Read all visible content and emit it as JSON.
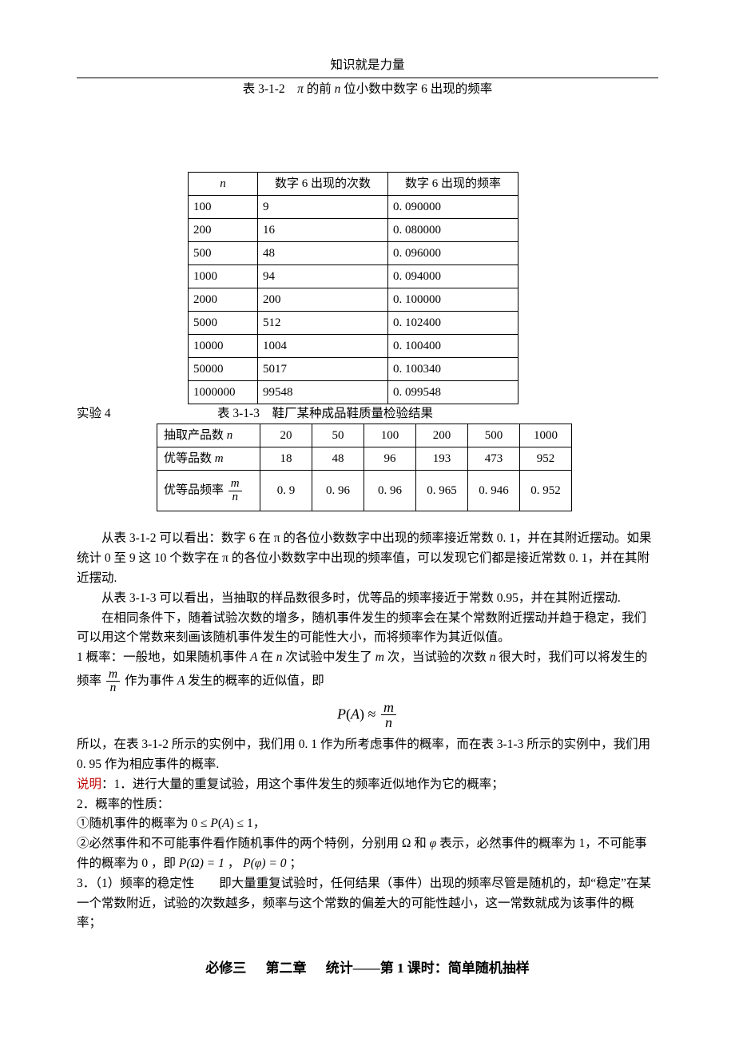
{
  "header": {
    "title": "知识就是力量"
  },
  "caption1": {
    "prefix": "表 3-1-2 ",
    "pi": "π",
    "mid": " 的前 ",
    "n": "n",
    "suffix": " 位小数中数字 6 出现的频率"
  },
  "table1": {
    "headers": {
      "c1_var": "n",
      "c2": "数字 6 出现的次数",
      "c3": "数字 6 出现的频率"
    },
    "rows": [
      {
        "n": "100",
        "count": "9",
        "freq": "0. 090000"
      },
      {
        "n": "200",
        "count": "16",
        "freq": "0. 080000"
      },
      {
        "n": "500",
        "count": "48",
        "freq": "0. 096000"
      },
      {
        "n": "1000",
        "count": "94",
        "freq": "0. 094000"
      },
      {
        "n": "2000",
        "count": "200",
        "freq": "0. 100000"
      },
      {
        "n": "5000",
        "count": "512",
        "freq": "0. 102400"
      },
      {
        "n": "10000",
        "count": "1004",
        "freq": "0. 100400"
      },
      {
        "n": "50000",
        "count": "5017",
        "freq": "0. 100340"
      },
      {
        "n": "1000000",
        "count": "99548",
        "freq": "0. 099548"
      }
    ]
  },
  "exp4_label": "实验 4",
  "caption3": "表 3-1-3 鞋厂某种成品鞋质量检验结果",
  "table2": {
    "header_row": {
      "label_prefix": "抽取产品数 ",
      "label_var": "n",
      "v": [
        "20",
        "50",
        "100",
        "200",
        "500",
        "1000"
      ]
    },
    "row2": {
      "label_prefix": "优等品数 ",
      "label_var": "m",
      "v": [
        "18",
        "48",
        "96",
        "193",
        "473",
        "952"
      ]
    },
    "row3": {
      "label_prefix": "优等品频率 ",
      "frac_num": "m",
      "frac_den": "n",
      "v": [
        "0. 9",
        "0. 96",
        "0. 96",
        "0. 965",
        "0. 946",
        "0. 952"
      ]
    }
  },
  "body": {
    "p1": "从表 3-1-2 可以看出：数字 6 在 π 的各位小数数字中出现的频率接近常数 0. 1，并在其附近摆动。如果统计 0 至 9 这 10 个数字在 π 的各位小数数字中出现的频率值，可以发现它们都是接近常数 0. 1，并在其附近摆动.",
    "p2": "从表 3-1-3 可以看出，当抽取的样品数很多时，优等品的频率接近于常数 0.95，并在其附近摆动.",
    "p3": "在相同条件下，随着试验次数的增多，随机事件发生的频率会在某个常数附近摆动并趋于稳定，我们可以用这个常数来刻画该随机事件发生的可能性大小，而将频率作为其近似值。",
    "p4_a": "1 概率：一般地，如果随机事件 ",
    "p4_A": "A",
    "p4_b": " 在 ",
    "p4_n": "n",
    "p4_c": " 次试验中发生了 ",
    "p4_m": "m",
    "p4_d": " 次，当试验的次数 ",
    "p4_n2": "n",
    "p4_e": " 很大时，我们可以将发生的频率 ",
    "p4_frac_num": "m",
    "p4_frac_den": "n",
    "p4_f": " 作为事件 ",
    "p4_A2": "A",
    "p4_g": " 发生的概率的近似值，即",
    "formula": {
      "PA": "P",
      "lpar": "(",
      "A": "A",
      "rpar": ")",
      "approx": " ≈ ",
      "num": "m",
      "den": "n"
    },
    "p5": "所以，在表 3-1-2 所示的实例中，我们用 0. 1 作为所考虑事件的概率，而在表 3-1-3 所示的实例中，我们用 0. 95 作为相应事件的概率.",
    "note_label": "说明",
    "note_1": "：1．进行大量的重复试验，用这个事件发生的频率近似地作为它的概率；",
    "p6": "2．概率的性质：",
    "p7_a": "①随机事件的概率为 ",
    "p7_b": "0 ≤ ",
    "p7_P": "P",
    "p7_lpar": "(",
    "p7_A": "A",
    "p7_rpar": ")",
    "p7_c": " ≤ 1",
    "p7_d": "，",
    "p8_a": "②必然事件和不可能事件看作随机事件的两个特例，分别用 Ω 和 ",
    "p8_phi": "φ",
    "p8_b": " 表示，必然事件的概率为 1，不可能事件的概率为 0 ，即 ",
    "p8_POmega": "P(Ω) = 1",
    "p8_c": " ， ",
    "p8_Pphi": "P(φ) = 0",
    "p8_d": " ；",
    "p9": "3．（1）频率的稳定性  即大量重复试验时，任何结果（事件）出现的频率尽管是随机的，却“稳定”在某一个常数附近，试验的次数越多，频率与这个常数的偏差大的可能性越小，这一常数就成为该事件的概率；"
  },
  "footer": {
    "a": "必修三",
    "b": "第二章",
    "c": "统计——第 1 课时：简单随机抽样"
  }
}
